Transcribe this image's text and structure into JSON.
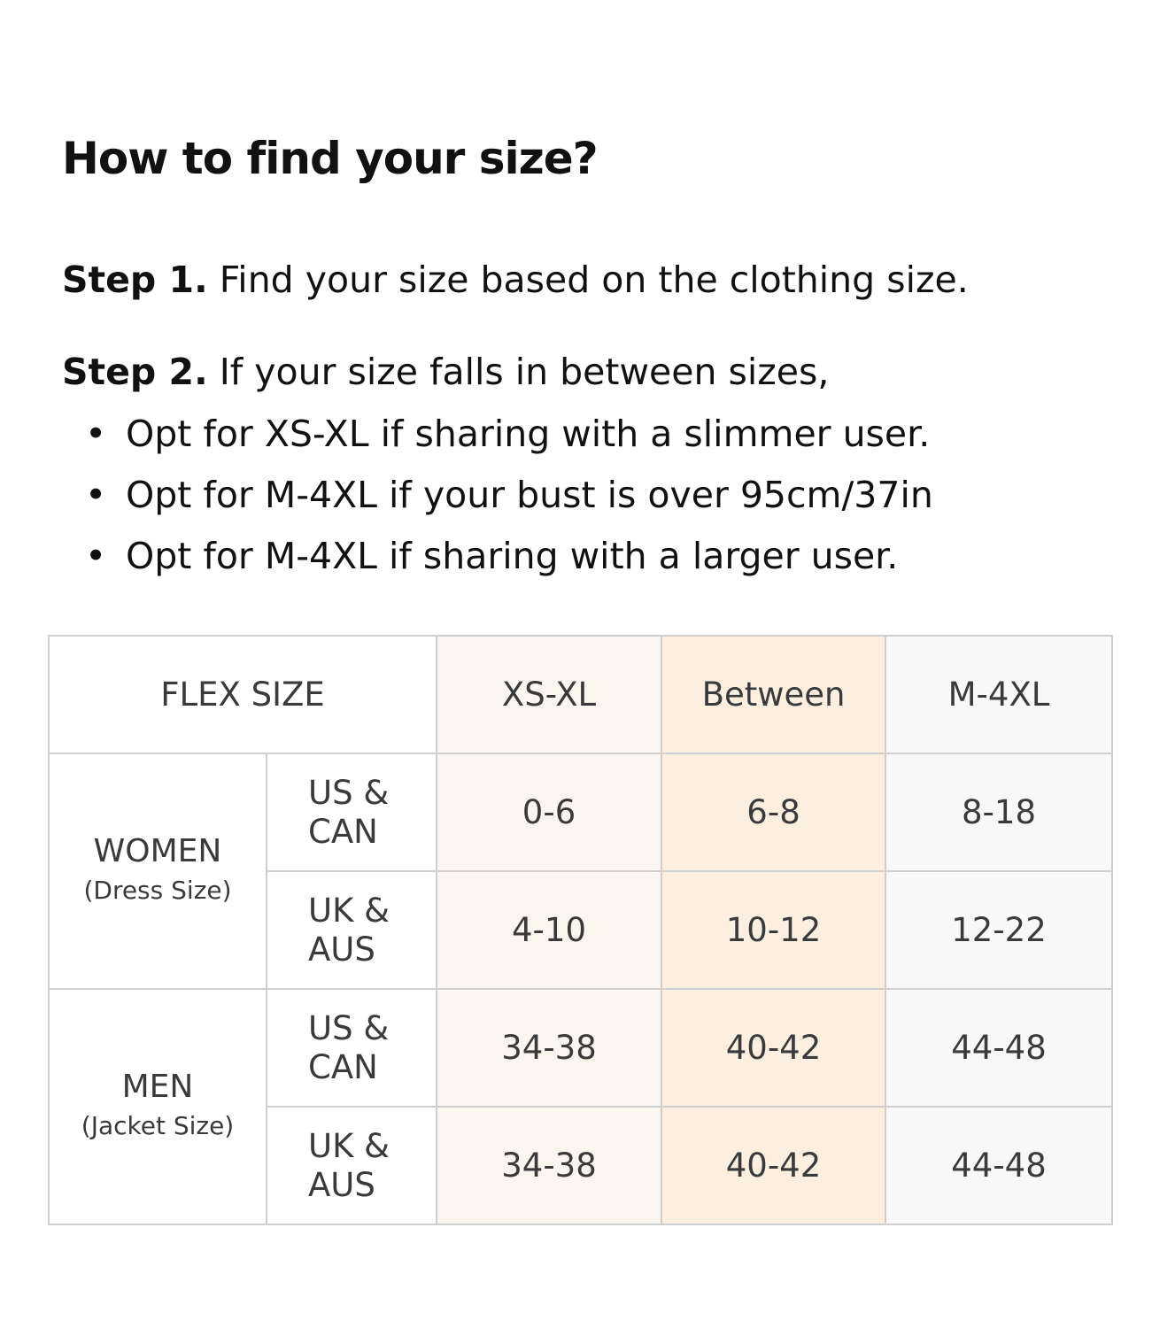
{
  "title": "How to find your size?",
  "step1": {
    "label": "Step 1.",
    "text": " Find your size based on the clothing size."
  },
  "step2": {
    "label": "Step 2.",
    "text": " If your size falls in between sizes,"
  },
  "bullets": [
    "Opt for XS-XL if sharing with a slimmer user.",
    "Opt for M-4XL if your bust is over 95cm/37in",
    "Opt for M-4XL if sharing with a larger user."
  ],
  "table": {
    "header": [
      "FLEX SIZE",
      "XS-XL",
      "Between",
      "M-4XL"
    ],
    "groups": [
      {
        "name": "WOMEN",
        "sub": "(Dress Size)",
        "rows": [
          {
            "region": [
              "US &",
              "CAN"
            ],
            "values": [
              "0-6",
              "6-8",
              "8-18"
            ]
          },
          {
            "region": [
              "UK &",
              "AUS"
            ],
            "values": [
              "4-10",
              "10-12",
              "12-22"
            ]
          }
        ]
      },
      {
        "name": "MEN",
        "sub": "(Jacket Size)",
        "rows": [
          {
            "region": [
              "US &",
              "CAN"
            ],
            "values": [
              "34-38",
              "40-42",
              "44-48"
            ]
          },
          {
            "region": [
              "UK &",
              "AUS"
            ],
            "values": [
              "34-38",
              "40-42",
              "44-48"
            ]
          }
        ]
      }
    ]
  },
  "colors": {
    "xs_xl": "#faf6ef",
    "between": "#fcefdf",
    "m_4xl": "#f8f8f8",
    "border": "#cfcfcf"
  }
}
